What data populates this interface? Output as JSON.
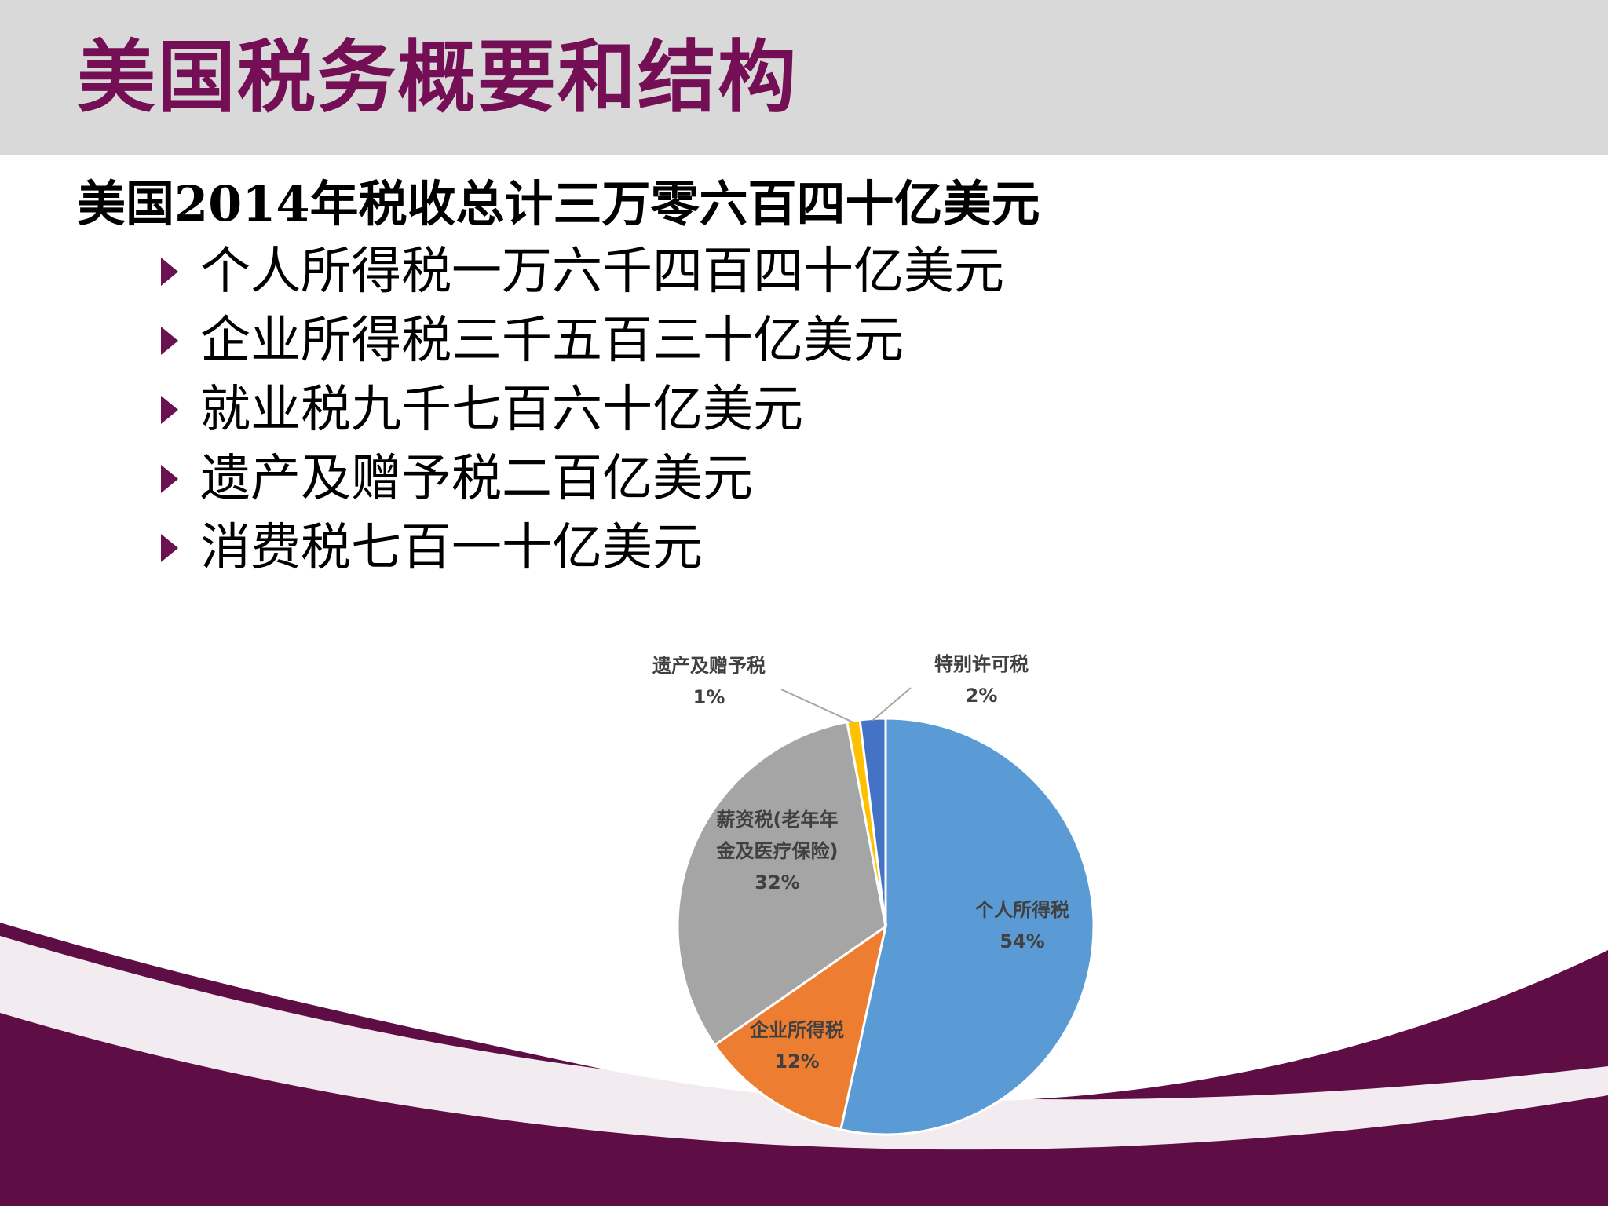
{
  "slide": {
    "title": "美国税务概要和结构",
    "summary": "美国2014年税收总计三万零六百四十亿美元",
    "bullets": [
      "个人所得税一万六千四百四十亿美元",
      "企业所得税三千五百三十亿美元",
      "就业税九千七百六十亿美元",
      "遗产及赠予税二百亿美元",
      "消费税七百一十亿美元"
    ]
  },
  "colors": {
    "title_text": "#740f55",
    "title_bar": "#d9d9d9",
    "bullet_marker": "#6b1050",
    "wave_dark": "#5e0e44",
    "wave_gray": "#5f5f5f",
    "slice_border": "#ffffff"
  },
  "chart_data": {
    "type": "pie",
    "title": "",
    "slices": [
      {
        "name": "个人所得税",
        "label_lines": [
          "个人所得税"
        ],
        "value": 54,
        "display": "54%",
        "color": "#5b9bd5"
      },
      {
        "name": "企业所得税",
        "label_lines": [
          "企业所得税"
        ],
        "value": 12,
        "display": "12%",
        "color": "#ed7d31"
      },
      {
        "name": "薪资税(老年年金及医疗保险)",
        "label_lines": [
          "薪资税(老年年",
          "金及医疗保险)"
        ],
        "value": 32,
        "display": "32%",
        "color": "#a5a5a5"
      },
      {
        "name": "遗产及赠予税",
        "label_lines": [
          "遗产及赠予税"
        ],
        "value": 1,
        "display": "1%",
        "color": "#ffc000"
      },
      {
        "name": "特别许可税",
        "label_lines": [
          "特别许可税"
        ],
        "value": 2,
        "display": "2%",
        "color": "#4472c4"
      }
    ],
    "legend": "none",
    "data_labels": "category name and percentage"
  }
}
